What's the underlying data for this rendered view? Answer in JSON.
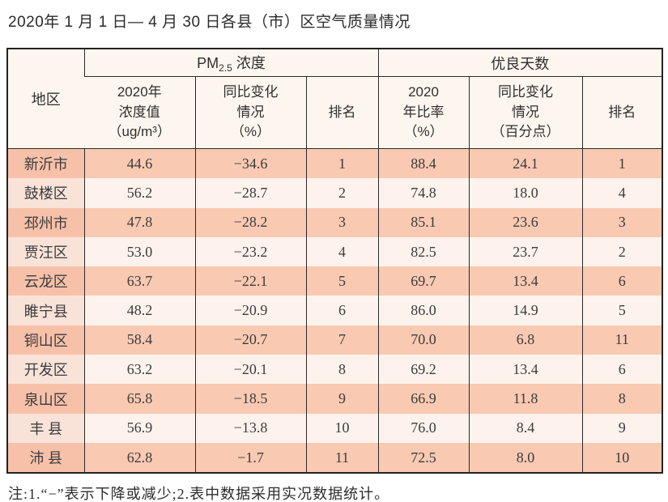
{
  "title": "2020年 1 月 1 日— 4 月 30 日各县（市）区空气质量情况",
  "table": {
    "region_header": "地区",
    "pm_group": {
      "prefix": "PM",
      "sub": "2.5",
      "suffix": " 浓度"
    },
    "good_group_label": "优良天数",
    "subheaders": [
      "2020年\n浓度值\n（ug/m³）",
      "同比变化\n情况\n（%）",
      "排名",
      "2020\n年比率\n（%）",
      "同比变化\n情况\n（百分点）",
      "排名"
    ],
    "rows": [
      {
        "region": "新沂市",
        "pm_value": "44.6",
        "pm_change": "−34.6",
        "pm_rank": "1",
        "good_rate": "88.4",
        "good_change": "24.1",
        "good_rank": "1"
      },
      {
        "region": "鼓楼区",
        "pm_value": "56.2",
        "pm_change": "−28.7",
        "pm_rank": "2",
        "good_rate": "74.8",
        "good_change": "18.0",
        "good_rank": "4"
      },
      {
        "region": "邳州市",
        "pm_value": "47.8",
        "pm_change": "−28.2",
        "pm_rank": "3",
        "good_rate": "85.1",
        "good_change": "23.6",
        "good_rank": "3"
      },
      {
        "region": "贾汪区",
        "pm_value": "53.0",
        "pm_change": "−23.2",
        "pm_rank": "4",
        "good_rate": "82.5",
        "good_change": "23.7",
        "good_rank": "2"
      },
      {
        "region": "云龙区",
        "pm_value": "63.7",
        "pm_change": "−22.1",
        "pm_rank": "5",
        "good_rate": "69.7",
        "good_change": "13.4",
        "good_rank": "6"
      },
      {
        "region": "睢宁县",
        "pm_value": "48.2",
        "pm_change": "−20.9",
        "pm_rank": "6",
        "good_rate": "86.0",
        "good_change": "14.9",
        "good_rank": "5"
      },
      {
        "region": "铜山区",
        "pm_value": "58.4",
        "pm_change": "−20.7",
        "pm_rank": "7",
        "good_rate": "70.0",
        "good_change": "6.8",
        "good_rank": "11"
      },
      {
        "region": "开发区",
        "pm_value": "63.2",
        "pm_change": "−20.1",
        "pm_rank": "8",
        "good_rate": "69.2",
        "good_change": "13.4",
        "good_rank": "6"
      },
      {
        "region": "泉山区",
        "pm_value": "65.8",
        "pm_change": "−18.5",
        "pm_rank": "9",
        "good_rate": "66.9",
        "good_change": "11.8",
        "good_rank": "8"
      },
      {
        "region": "丰 县",
        "pm_value": "56.9",
        "pm_change": "−13.8",
        "pm_rank": "10",
        "good_rate": "76.0",
        "good_change": "8.4",
        "good_rank": "9"
      },
      {
        "region": "沛 县",
        "pm_value": "62.8",
        "pm_change": "−1.7",
        "pm_rank": "11",
        "good_rate": "72.5",
        "good_change": "8.0",
        "good_rank": "10"
      }
    ],
    "column_keys": [
      "region",
      "pm_value",
      "pm_change",
      "pm_rank",
      "good_rate",
      "good_change",
      "good_rank"
    ]
  },
  "footnote": "注:1.“−”表示下降或减少;2.表中数据采用实况数据统计。",
  "colors": {
    "row_odd": "#f9c9b2",
    "row_odd_region": "#f7c1a9",
    "row_even": "#fdf3ec",
    "row_even_region": "#f9e3d9",
    "header_bg": "#fdf6ee",
    "border": "#2b2b2b"
  }
}
